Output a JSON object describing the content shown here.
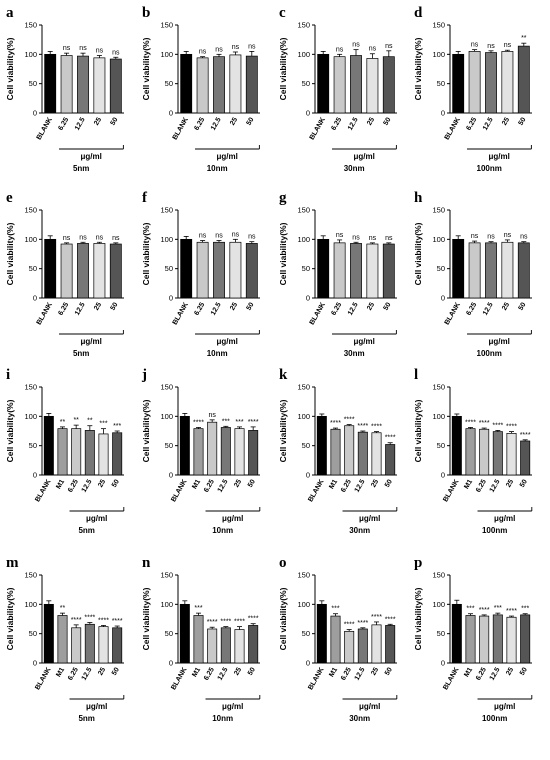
{
  "colors": {
    "BLANK": "#000000",
    "M1": "#9e9e9e",
    "6.25": "#c9c9c9",
    "12.5": "#777777",
    "25": "#e3e3e3",
    "50": "#555555"
  },
  "chart_data": [
    {
      "panel": "a",
      "type": "bar",
      "ylabel": "Cell viability(%)",
      "ylim": [
        0,
        150
      ],
      "yticks": [
        0,
        50,
        100,
        150
      ],
      "categories": [
        "BLANK",
        "6.25",
        "12.5",
        "25",
        "50"
      ],
      "values": [
        100,
        98,
        97,
        94,
        92
      ],
      "errors": [
        5,
        4,
        5,
        4,
        3
      ],
      "significance": [
        "",
        "ns",
        "ns",
        "ns",
        "ns"
      ],
      "group_label": "μg/ml",
      "subtitle": "5nm"
    },
    {
      "panel": "b",
      "type": "bar",
      "ylabel": "Cell viability(%)",
      "ylim": [
        0,
        150
      ],
      "yticks": [
        0,
        50,
        100,
        150
      ],
      "categories": [
        "BLANK",
        "6.25",
        "12.5",
        "25",
        "50"
      ],
      "values": [
        100,
        94,
        96,
        99,
        97
      ],
      "errors": [
        5,
        2,
        4,
        5,
        8
      ],
      "significance": [
        "",
        "ns",
        "ns",
        "ns",
        "ns"
      ],
      "group_label": "μg/ml",
      "subtitle": "10nm"
    },
    {
      "panel": "c",
      "type": "bar",
      "ylabel": "Cell viability(%)",
      "ylim": [
        0,
        150
      ],
      "yticks": [
        0,
        50,
        100,
        150
      ],
      "categories": [
        "BLANK",
        "6.25",
        "12.5",
        "25",
        "50"
      ],
      "values": [
        100,
        96,
        98,
        93,
        96
      ],
      "errors": [
        5,
        4,
        10,
        8,
        10
      ],
      "significance": [
        "",
        "ns",
        "ns",
        "ns",
        "ns"
      ],
      "group_label": "μg/ml",
      "subtitle": "30nm"
    },
    {
      "panel": "d",
      "type": "bar",
      "ylabel": "Cell viability(%)",
      "ylim": [
        0,
        150
      ],
      "yticks": [
        0,
        50,
        100,
        150
      ],
      "categories": [
        "BLANK",
        "6.25",
        "12.5",
        "25",
        "50"
      ],
      "values": [
        100,
        105,
        103,
        105,
        114
      ],
      "errors": [
        5,
        3,
        3,
        2,
        5
      ],
      "significance": [
        "",
        "ns",
        "ns",
        "ns",
        "**"
      ],
      "group_label": "μg/ml",
      "subtitle": "100nm"
    },
    {
      "panel": "e",
      "type": "bar",
      "ylabel": "Cell viability(%)",
      "ylim": [
        0,
        150
      ],
      "yticks": [
        0,
        50,
        100,
        150
      ],
      "categories": [
        "BLANK",
        "6.25",
        "12.5",
        "25",
        "50"
      ],
      "values": [
        100,
        92,
        93,
        93,
        92
      ],
      "errors": [
        6,
        2,
        2,
        2,
        2
      ],
      "significance": [
        "",
        "ns",
        "ns",
        "ns",
        "ns"
      ],
      "group_label": "μg/ml",
      "subtitle": "5nm"
    },
    {
      "panel": "f",
      "type": "bar",
      "ylabel": "Cell viability(%)",
      "ylim": [
        0,
        150
      ],
      "yticks": [
        0,
        50,
        100,
        150
      ],
      "categories": [
        "BLANK",
        "6.25",
        "12.5",
        "25",
        "50"
      ],
      "values": [
        100,
        95,
        95,
        95,
        93
      ],
      "errors": [
        5,
        3,
        3,
        5,
        3
      ],
      "significance": [
        "",
        "ns",
        "ns",
        "ns",
        "ns"
      ],
      "group_label": "μg/ml",
      "subtitle": "10nm"
    },
    {
      "panel": "g",
      "type": "bar",
      "ylabel": "Cell viability(%)",
      "ylim": [
        0,
        150
      ],
      "yticks": [
        0,
        50,
        100,
        150
      ],
      "categories": [
        "BLANK",
        "6.25",
        "12.5",
        "25",
        "50"
      ],
      "values": [
        100,
        94,
        93,
        92,
        92
      ],
      "errors": [
        6,
        5,
        2,
        2,
        2
      ],
      "significance": [
        "",
        "ns",
        "ns",
        "ns",
        "ns"
      ],
      "group_label": "μg/ml",
      "subtitle": "30nm"
    },
    {
      "panel": "h",
      "type": "bar",
      "ylabel": "Cell viability(%)",
      "ylim": [
        0,
        150
      ],
      "yticks": [
        0,
        50,
        100,
        150
      ],
      "categories": [
        "BLANK",
        "6.25",
        "12.5",
        "25",
        "50"
      ],
      "values": [
        100,
        94,
        94,
        95,
        94
      ],
      "errors": [
        6,
        3,
        2,
        4,
        2
      ],
      "significance": [
        "",
        "ns",
        "ns",
        "ns",
        "ns"
      ],
      "group_label": "μg/ml",
      "subtitle": "100nm"
    },
    {
      "panel": "i",
      "type": "bar",
      "ylabel": "Cell viability(%)",
      "ylim": [
        0,
        150
      ],
      "yticks": [
        0,
        50,
        100,
        150
      ],
      "categories": [
        "BLANK",
        "M1",
        "6.25",
        "12.5",
        "25",
        "50"
      ],
      "values": [
        100,
        79,
        79,
        76,
        70,
        72
      ],
      "errors": [
        5,
        3,
        6,
        8,
        9,
        3
      ],
      "significance": [
        "",
        "**",
        "**",
        "**",
        "***",
        "***"
      ],
      "group_label": "μg/ml",
      "subtitle": "5nm"
    },
    {
      "panel": "j",
      "type": "bar",
      "ylabel": "Cell viability(%)",
      "ylim": [
        0,
        150
      ],
      "yticks": [
        0,
        50,
        100,
        150
      ],
      "categories": [
        "BLANK",
        "M1",
        "6.25",
        "12.5",
        "25",
        "50"
      ],
      "values": [
        100,
        79,
        90,
        81,
        79,
        76
      ],
      "errors": [
        5,
        2,
        4,
        2,
        3,
        6
      ],
      "significance": [
        "",
        "****",
        "ns",
        "***",
        "***",
        "****"
      ],
      "group_label": "μg/ml",
      "subtitle": "10nm"
    },
    {
      "panel": "k",
      "type": "bar",
      "ylabel": "Cell viability(%)",
      "ylim": [
        0,
        150
      ],
      "yticks": [
        0,
        50,
        100,
        150
      ],
      "categories": [
        "BLANK",
        "M1",
        "6.25",
        "12.5",
        "25",
        "50"
      ],
      "values": [
        100,
        78,
        84,
        73,
        72,
        52
      ],
      "errors": [
        4,
        2,
        2,
        2,
        2,
        3
      ],
      "significance": [
        "",
        "****",
        "****",
        "****",
        "****",
        "****"
      ],
      "group_label": "μg/ml",
      "subtitle": "30nm"
    },
    {
      "panel": "l",
      "type": "bar",
      "ylabel": "Cell viability(%)",
      "ylim": [
        0,
        150
      ],
      "yticks": [
        0,
        50,
        100,
        150
      ],
      "categories": [
        "BLANK",
        "M1",
        "6.25",
        "12.5",
        "25",
        "50"
      ],
      "values": [
        100,
        79,
        78,
        74,
        71,
        58
      ],
      "errors": [
        4,
        2,
        2,
        2,
        3,
        2
      ],
      "significance": [
        "",
        "****",
        "****",
        "****",
        "****",
        "****"
      ],
      "group_label": "μg/ml",
      "subtitle": "100nm"
    },
    {
      "panel": "m",
      "type": "bar",
      "ylabel": "Cell viability(%)",
      "ylim": [
        0,
        150
      ],
      "yticks": [
        0,
        50,
        100,
        150
      ],
      "categories": [
        "BLANK",
        "M1",
        "6.25",
        "12.5",
        "25",
        "50"
      ],
      "values": [
        100,
        81,
        60,
        66,
        62,
        60
      ],
      "errors": [
        6,
        4,
        5,
        3,
        2,
        3
      ],
      "significance": [
        "",
        "**",
        "****",
        "****",
        "****",
        "****"
      ],
      "group_label": "μg/ml",
      "subtitle": "5nm"
    },
    {
      "panel": "n",
      "type": "bar",
      "ylabel": "Cell viability(%)",
      "ylim": [
        0,
        150
      ],
      "yticks": [
        0,
        50,
        100,
        150
      ],
      "categories": [
        "BLANK",
        "M1",
        "6.25",
        "12.5",
        "25",
        "50"
      ],
      "values": [
        100,
        81,
        58,
        60,
        57,
        64
      ],
      "errors": [
        6,
        4,
        3,
        2,
        5,
        3
      ],
      "significance": [
        "",
        "***",
        "****",
        "****",
        "****",
        "****"
      ],
      "group_label": "μg/ml",
      "subtitle": "10nm"
    },
    {
      "panel": "o",
      "type": "bar",
      "ylabel": "Cell viability(%)",
      "ylim": [
        0,
        150
      ],
      "yticks": [
        0,
        50,
        100,
        150
      ],
      "categories": [
        "BLANK",
        "M1",
        "6.25",
        "12.5",
        "25",
        "50"
      ],
      "values": [
        100,
        80,
        54,
        58,
        65,
        64
      ],
      "errors": [
        6,
        4,
        3,
        2,
        5,
        2
      ],
      "significance": [
        "",
        "***",
        "****",
        "****",
        "****",
        "****"
      ],
      "group_label": "μg/ml",
      "subtitle": "30nm"
    },
    {
      "panel": "p",
      "type": "bar",
      "ylabel": "Cell viability(%)",
      "ylim": [
        0,
        150
      ],
      "yticks": [
        0,
        50,
        100,
        150
      ],
      "categories": [
        "BLANK",
        "M1",
        "6.25",
        "12.5",
        "25",
        "50"
      ],
      "values": [
        100,
        81,
        80,
        82,
        78,
        82
      ],
      "errors": [
        7,
        3,
        2,
        3,
        2,
        2
      ],
      "significance": [
        "",
        "***",
        "****",
        "***",
        "****",
        "***"
      ],
      "group_label": "μg/ml",
      "subtitle": "100nm"
    }
  ]
}
